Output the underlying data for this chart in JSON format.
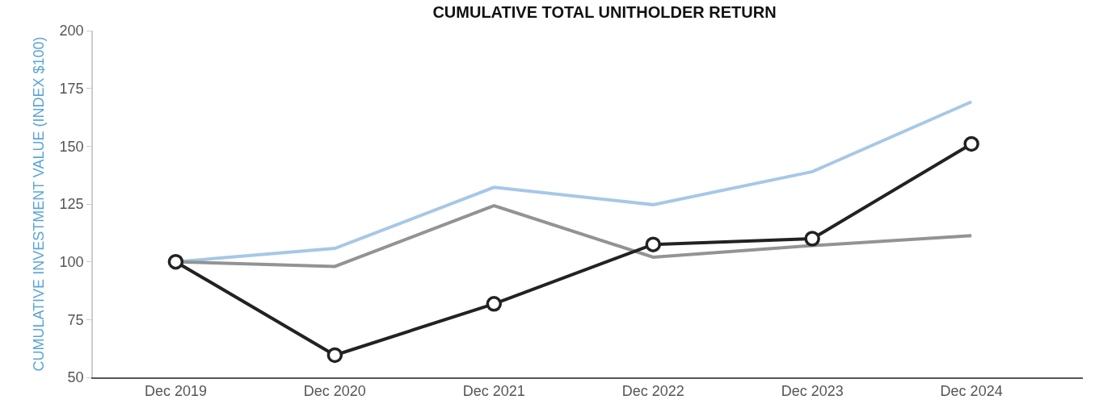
{
  "chart_data": {
    "type": "line",
    "title": "CUMULATIVE TOTAL UNITHOLDER RETURN",
    "ylabel": "CUMULATIVE INVESTMENT VALUE (INDEX $100)",
    "categories": [
      "Dec 2019",
      "Dec 2020",
      "Dec 2021",
      "Dec 2022",
      "Dec 2023",
      "Dec 2024"
    ],
    "series": [
      {
        "color": "#a7c7e7",
        "values": [
          100,
          105.8,
          132.2,
          124.7,
          139,
          169.2
        ],
        "marker": "none"
      },
      {
        "color": "#939393",
        "values": [
          100,
          98,
          124.3,
          102,
          107,
          111.3
        ],
        "marker": "none"
      },
      {
        "color": "#222222",
        "values": [
          100,
          59.6,
          81.8,
          107.5,
          110,
          151
        ],
        "marker": "circle"
      }
    ],
    "ylim": [
      50,
      200
    ],
    "yticks": [
      50,
      75,
      100,
      125,
      150,
      175,
      200
    ]
  }
}
